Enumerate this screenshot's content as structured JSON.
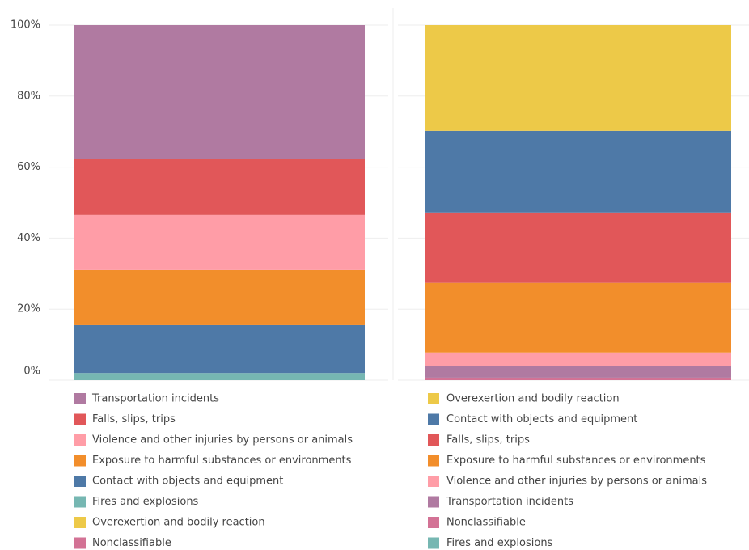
{
  "chart_data": [
    {
      "type": "stacked_bar",
      "ylim": [
        0,
        100
      ],
      "yticks": [
        {
          "value": 0,
          "label": "0%"
        },
        {
          "value": 20,
          "label": "20%"
        },
        {
          "value": 40,
          "label": "40%"
        },
        {
          "value": 60,
          "label": "60%"
        },
        {
          "value": 80,
          "label": "80%"
        },
        {
          "value": 100,
          "label": "100%"
        }
      ],
      "grid": true,
      "series": [
        {
          "name": "Transportation incidents",
          "color": "#b07aa1",
          "values": [
            37.8
          ]
        },
        {
          "name": "Falls, slips, trips",
          "color": "#e15759",
          "values": [
            15.7
          ]
        },
        {
          "name": "Violence and other injuries by persons or animals",
          "color": "#ff9da7",
          "values": [
            15.5
          ]
        },
        {
          "name": "Exposure to harmful substances or environments",
          "color": "#f28e2b",
          "values": [
            15.5
          ]
        },
        {
          "name": "Contact with objects and equipment",
          "color": "#4e79a7",
          "values": [
            13.5
          ]
        },
        {
          "name": "Fires and explosions",
          "color": "#76b7b2",
          "values": [
            2
          ]
        },
        {
          "name": "Overexertion and bodily reaction",
          "color": "#edc948",
          "values": [
            0
          ]
        },
        {
          "name": "Nonclassifiable",
          "color": "#d37295",
          "values": [
            0
          ]
        }
      ]
    },
    {
      "type": "stacked_bar",
      "ylim": [
        0,
        100
      ],
      "yticks": [
        0,
        20,
        40,
        60,
        80,
        100
      ],
      "grid": true,
      "series": [
        {
          "name": "Overexertion and bodily reaction",
          "color": "#edc948",
          "values": [
            29.8
          ]
        },
        {
          "name": "Contact with objects and equipment",
          "color": "#4e79a7",
          "values": [
            23
          ]
        },
        {
          "name": "Falls, slips, trips",
          "color": "#e15759",
          "values": [
            19.8
          ]
        },
        {
          "name": "Exposure to harmful substances or environments",
          "color": "#f28e2b",
          "values": [
            19.6
          ]
        },
        {
          "name": "Violence and other injuries by persons or animals",
          "color": "#ff9da7",
          "values": [
            3.9
          ]
        },
        {
          "name": "Transportation incidents",
          "color": "#b07aa1",
          "values": [
            3.2
          ]
        },
        {
          "name": "Nonclassifiable",
          "color": "#d37295",
          "values": [
            0.7
          ]
        },
        {
          "name": "Fires and explosions",
          "color": "#76b7b2",
          "values": [
            0
          ]
        }
      ]
    }
  ]
}
